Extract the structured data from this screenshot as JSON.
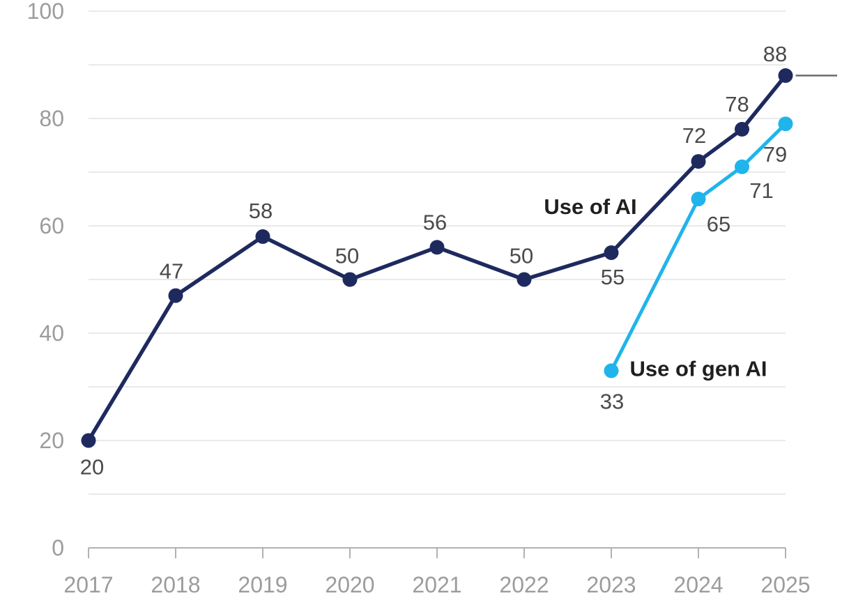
{
  "chart_theme": {
    "background": "#ffffff",
    "grid_color": "#e9e9e9",
    "axis_line_color": "#b2b2b2",
    "tick_color": "#b2b2b2",
    "axis_label_color": "#9c9c9c",
    "data_label_color": "#4a4a4a",
    "series_label_color": "#1f1f1f",
    "leader_line_color": "#6b6b6b"
  },
  "chart_data": {
    "type": "line",
    "title": "",
    "xlabel": "",
    "ylabel": "",
    "xlim": [
      2017,
      2025
    ],
    "ylim": [
      0,
      100
    ],
    "x_ticks": [
      2017,
      2018,
      2019,
      2020,
      2021,
      2022,
      2023,
      2024,
      2025
    ],
    "y_ticks": [
      0,
      20,
      40,
      60,
      80,
      100
    ],
    "grid_step": 10,
    "grid": "horizontal",
    "legend_position": "inline-annotations",
    "series": [
      {
        "name": "Use of AI",
        "color": "#1e2a5e",
        "marker_radius": 10.5,
        "line_width": 5.5,
        "end_leader_line": true,
        "annotation": {
          "text": "Use of AI",
          "x": 2022.76,
          "y": 63.6
        },
        "points": [
          {
            "x": 2017,
            "y": 20,
            "label": "20",
            "label_offset": [
              5,
              38
            ]
          },
          {
            "x": 2018,
            "y": 47,
            "label": "47",
            "label_offset": [
              -6,
              -35
            ]
          },
          {
            "x": 2019,
            "y": 58,
            "label": "58",
            "label_offset": [
              -3,
              -37
            ]
          },
          {
            "x": 2020,
            "y": 50,
            "label": "50",
            "label_offset": [
              -4,
              -34
            ]
          },
          {
            "x": 2021,
            "y": 56,
            "label": "56",
            "label_offset": [
              -3,
              -36
            ]
          },
          {
            "x": 2022,
            "y": 50,
            "label": "50",
            "label_offset": [
              -4,
              -34
            ]
          },
          {
            "x": 2023,
            "y": 55,
            "label": "55",
            "label_offset": [
              2,
              35
            ]
          },
          {
            "x": 2024,
            "y": 72,
            "label": "72",
            "label_offset": [
              -6,
              -37
            ]
          },
          {
            "x": 2024.5,
            "y": 78,
            "label": "78",
            "label_offset": [
              -7,
              -36
            ]
          },
          {
            "x": 2025,
            "y": 88,
            "label": "88",
            "label_offset": [
              -15,
              -31
            ]
          }
        ]
      },
      {
        "name": "Use of gen AI",
        "color": "#20b4ec",
        "marker_radius": 10.5,
        "line_width": 5,
        "end_leader_line": false,
        "annotation": {
          "text": "Use of gen AI",
          "x": 2024.0,
          "y": 33.4
        },
        "points": [
          {
            "x": 2023,
            "y": 33,
            "label": "33",
            "label_offset": [
              1,
              44
            ]
          },
          {
            "x": 2024,
            "y": 65,
            "label": "65",
            "label_offset": [
              29,
              36
            ]
          },
          {
            "x": 2024.5,
            "y": 71,
            "label": "71",
            "label_offset": [
              28,
              34
            ]
          },
          {
            "x": 2025,
            "y": 79,
            "label": "79",
            "label_offset": [
              -15,
              44
            ]
          }
        ]
      }
    ]
  }
}
